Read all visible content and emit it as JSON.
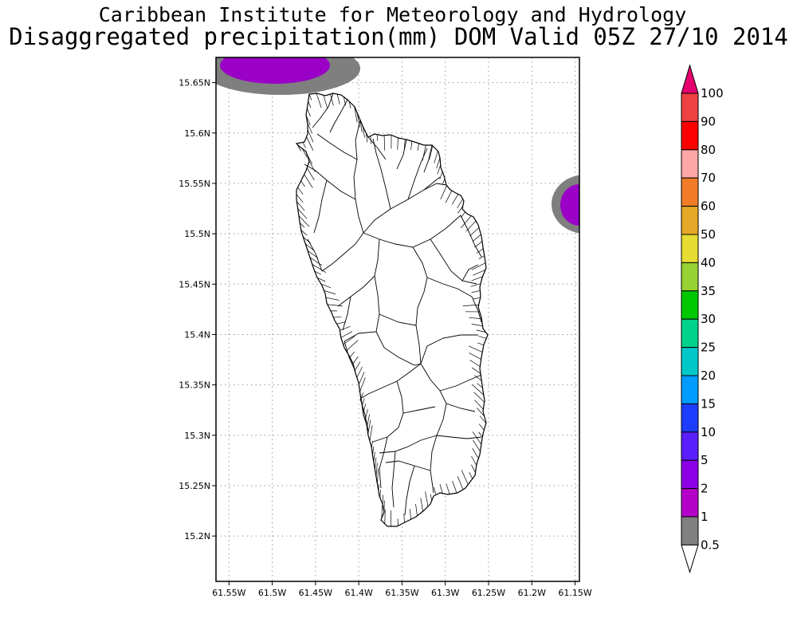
{
  "header": {
    "institution": "Caribbean Institute for Meteorology and Hydrology",
    "product_title": "Disaggregated precipitation(mm) DOM Valid 05Z 27/10 2014"
  },
  "map": {
    "axes": {
      "lon_labels": [
        "61.55W",
        "61.5W",
        "61.45W",
        "61.4W",
        "61.35W",
        "61.3W",
        "61.25W",
        "61.2W",
        "61.15W"
      ],
      "lat_labels": [
        "15.65N",
        "15.6N",
        "15.55N",
        "15.5N",
        "15.45N",
        "15.4N",
        "15.35N",
        "15.3N",
        "15.25N",
        "15.2N"
      ],
      "lon_range_deg_w": [
        61.565,
        61.145
      ],
      "lat_range_deg_n": [
        15.155,
        15.675
      ],
      "grid": true
    },
    "land_fill": "#ffffff",
    "outline_color": "#000000",
    "precip_areas": [
      {
        "name": "northwest-offshore",
        "category": "1-2",
        "color": "#9a00c6"
      },
      {
        "name": "northwest-offshore",
        "category": "0.5-1",
        "color": "#7f7f7f"
      },
      {
        "name": "east-offshore",
        "category": "1-2",
        "color": "#9a00c6"
      },
      {
        "name": "east-offshore",
        "category": "0.5-1",
        "color": "#7f7f7f"
      }
    ]
  },
  "legend": {
    "labels": [
      "100",
      "90",
      "80",
      "70",
      "60",
      "50",
      "40",
      "35",
      "30",
      "25",
      "20",
      "15",
      "10",
      "5",
      "2",
      "1",
      "0.5"
    ],
    "colors_top_to_bottom": [
      "#e6006e",
      "#ee4141",
      "#fa0000",
      "#fca6a6",
      "#f07c28",
      "#e6a828",
      "#e6dc32",
      "#96d232",
      "#00c800",
      "#00d28c",
      "#00c8c8",
      "#009cff",
      "#1e3cff",
      "#5a1eff",
      "#8c00e6",
      "#b400c8",
      "#808080",
      "#ffffff"
    ]
  }
}
